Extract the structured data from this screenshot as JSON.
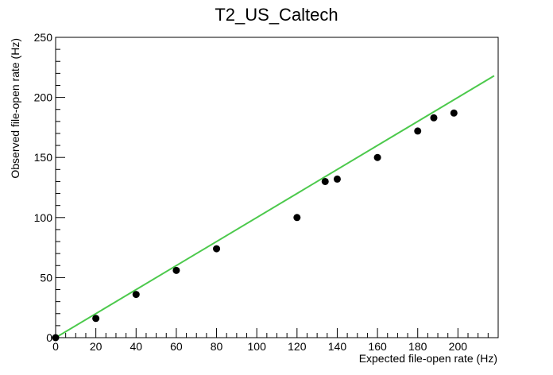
{
  "chart_data": {
    "type": "scatter",
    "title": "T2_US_Caltech",
    "xlabel": "Expected file-open rate (Hz)",
    "ylabel": "Observed file-open rate (Hz)",
    "xlim": [
      0,
      220
    ],
    "ylim": [
      0,
      250
    ],
    "x_ticks": [
      "0",
      "20",
      "40",
      "60",
      "80",
      "100",
      "120",
      "140",
      "160",
      "180",
      "200"
    ],
    "y_ticks": [
      "0",
      "50",
      "100",
      "150",
      "200",
      "250"
    ],
    "grid": false,
    "legend": "none",
    "series": [
      {
        "type": "scatter",
        "color": "#000000",
        "points": [
          {
            "x": 0,
            "y": 0
          },
          {
            "x": 20,
            "y": 16
          },
          {
            "x": 40,
            "y": 36
          },
          {
            "x": 60,
            "y": 56
          },
          {
            "x": 80,
            "y": 74
          },
          {
            "x": 120,
            "y": 100
          },
          {
            "x": 134,
            "y": 130
          },
          {
            "x": 140,
            "y": 132
          },
          {
            "x": 160,
            "y": 150
          },
          {
            "x": 180,
            "y": 172
          },
          {
            "x": 188,
            "y": 183
          },
          {
            "x": 198,
            "y": 187
          }
        ]
      },
      {
        "type": "line",
        "color": "#4cc94c",
        "points": [
          {
            "x": 0,
            "y": 0
          },
          {
            "x": 218,
            "y": 218
          }
        ]
      }
    ]
  }
}
